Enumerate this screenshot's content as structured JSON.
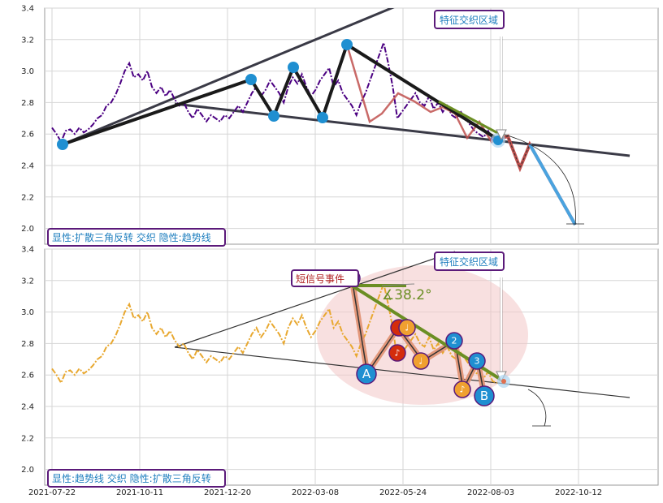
{
  "chart_data": [
    {
      "type": "line",
      "panel": "top",
      "ylim": [
        1.9,
        3.4
      ],
      "yticks": [
        "2.0",
        "2.2",
        "2.4",
        "2.6",
        "2.8",
        "3.0",
        "3.2",
        "3.4"
      ],
      "x_tick_labels": [
        "2021-07-22",
        "2021-10-11",
        "2021-12-20",
        "2022-03-08",
        "2022-05-24",
        "2022-08-03",
        "2022-10-12"
      ],
      "grid": true,
      "price_series_color": "#4b0082",
      "price": [
        2.64,
        2.6,
        2.55,
        2.62,
        2.63,
        2.6,
        2.64,
        2.61,
        2.63,
        2.66,
        2.7,
        2.72,
        2.78,
        2.8,
        2.85,
        2.92,
        3.0,
        3.05,
        2.96,
        2.98,
        2.94,
        3.0,
        2.9,
        2.86,
        2.9,
        2.84,
        2.88,
        2.82,
        2.78,
        2.8,
        2.74,
        2.7,
        2.76,
        2.72,
        2.68,
        2.72,
        2.7,
        2.68,
        2.72,
        2.7,
        2.74,
        2.78,
        2.74,
        2.8,
        2.86,
        2.9,
        2.84,
        2.88,
        2.94,
        2.9,
        2.86,
        2.8,
        2.9,
        2.96,
        2.92,
        2.98,
        2.9,
        2.84,
        2.88,
        2.94,
        2.98,
        3.02,
        2.9,
        2.94,
        2.86,
        2.82,
        2.78,
        2.72,
        2.8,
        2.86,
        2.94,
        3.02,
        3.1,
        3.18,
        3.05,
        2.9,
        2.7,
        2.74,
        2.78,
        2.82,
        2.86,
        2.8,
        2.78,
        2.84,
        2.76,
        2.8,
        2.74,
        2.78,
        2.72,
        2.7,
        2.74,
        2.7,
        2.66,
        2.62,
        2.6,
        2.58,
        2.62,
        2.56,
        2.55
      ],
      "trend_line_upper": [
        [
          2.53,
          3.42
        ]
      ],
      "trend_line_lower": [
        [
          2.78,
          2.46
        ]
      ],
      "pivot_points": [
        2.53,
        2.95,
        2.71,
        3.02,
        2.7,
        3.17,
        2.55
      ],
      "projection": [
        2.55,
        2.61,
        2.38,
        2.53,
        2.02
      ],
      "label": "显性:扩散三角反转 交织 隐性:趋势线",
      "zone_label": "特征交织区域"
    },
    {
      "type": "line",
      "panel": "bottom",
      "ylim": [
        1.9,
        3.4
      ],
      "yticks": [
        "2.0",
        "2.2",
        "2.4",
        "2.6",
        "2.8",
        "3.0",
        "3.2",
        "3.4"
      ],
      "x_tick_labels": [
        "2021-07-22",
        "2021-10-11",
        "2021-12-20",
        "2022-03-08",
        "2022-05-24",
        "2022-08-03",
        "2022-10-12"
      ],
      "grid": true,
      "price_series_color": "#e8a830",
      "angle_label": "∡38.2°",
      "signal_label": "短信号事件",
      "markers": [
        "1",
        "A",
        "2",
        "3",
        "B",
        "♪",
        "♩"
      ],
      "label": "显性:趋势线 交织 隐性:扩散三角反转",
      "zone_label": "特征交织区域"
    }
  ]
}
